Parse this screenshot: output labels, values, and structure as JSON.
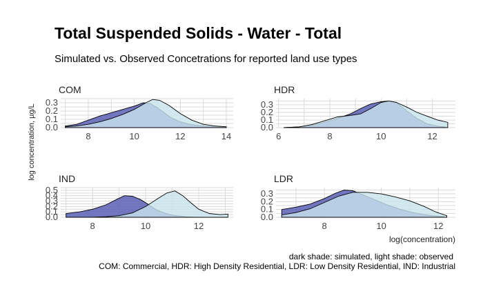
{
  "title": "Total Suspended Solids - Water - Total",
  "subtitle": "Simulated vs. Observed Concetrations for reported land use types",
  "ylabel": "log concentration, µg/L",
  "xlabel": "log(concentration)",
  "caption_line1": "dark shade: simulated, light shade: observed",
  "caption_line2": "COM: Commercial, HDR: High Density Residential, LDR: Low Density Residential, IND: Industrial",
  "colors": {
    "simulated": "#5b5fb5",
    "observed": "#c8e3ec",
    "grid": "#d9d9d9",
    "outline": "#000000"
  },
  "chart_data": [
    {
      "type": "area",
      "panel": "COM",
      "xlim": [
        6.8,
        14.3
      ],
      "ylim": [
        0,
        0.35
      ],
      "xticks": [
        8,
        10,
        12,
        14
      ],
      "yticks": [
        0.0,
        0.1,
        0.2,
        0.3
      ],
      "series": [
        {
          "name": "simulated",
          "x": [
            7.0,
            7.5,
            8.0,
            8.5,
            9.0,
            9.5,
            10.0,
            10.4,
            10.7,
            11.0,
            11.3,
            11.6,
            12.0,
            12.4,
            12.8,
            13.2,
            13.6,
            14.0
          ],
          "y": [
            0.02,
            0.04,
            0.09,
            0.14,
            0.18,
            0.22,
            0.26,
            0.3,
            0.29,
            0.24,
            0.18,
            0.12,
            0.07,
            0.04,
            0.025,
            0.015,
            0.01,
            0.01
          ]
        },
        {
          "name": "observed",
          "x": [
            7.0,
            7.5,
            8.0,
            8.5,
            9.0,
            9.5,
            10.0,
            10.5,
            10.8,
            11.1,
            11.5,
            12.0,
            12.5,
            13.0,
            13.5,
            14.0
          ],
          "y": [
            0.01,
            0.02,
            0.04,
            0.07,
            0.11,
            0.16,
            0.22,
            0.3,
            0.34,
            0.33,
            0.27,
            0.17,
            0.09,
            0.04,
            0.02,
            0.01
          ]
        }
      ]
    },
    {
      "type": "area",
      "panel": "HDR",
      "xlim": [
        5.9,
        12.9
      ],
      "ylim": [
        0,
        0.38
      ],
      "xticks": [
        6,
        8,
        10,
        12
      ],
      "yticks": [
        0.0,
        0.1,
        0.2,
        0.3
      ],
      "series": [
        {
          "name": "simulated",
          "x": [
            6.2,
            6.8,
            7.3,
            7.8,
            8.3,
            8.8,
            9.2,
            9.6,
            10.0,
            10.3,
            10.6,
            11.0,
            11.4,
            11.8,
            12.2,
            12.5
          ],
          "y": [
            0.0,
            0.01,
            0.03,
            0.07,
            0.12,
            0.18,
            0.25,
            0.31,
            0.34,
            0.35,
            0.33,
            0.22,
            0.12,
            0.05,
            0.02,
            0.01
          ]
        },
        {
          "name": "observed",
          "x": [
            6.2,
            6.8,
            7.3,
            7.8,
            8.3,
            8.8,
            9.2,
            9.6,
            10.0,
            10.3,
            10.6,
            11.0,
            11.4,
            11.8,
            12.2,
            12.6
          ],
          "y": [
            0.0,
            0.01,
            0.04,
            0.09,
            0.14,
            0.16,
            0.18,
            0.25,
            0.33,
            0.35,
            0.33,
            0.27,
            0.2,
            0.15,
            0.1,
            0.07
          ]
        }
      ]
    },
    {
      "type": "area",
      "panel": "IND",
      "xlim": [
        6.8,
        13.3
      ],
      "ylim": [
        0,
        0.55
      ],
      "xticks": [
        8,
        10,
        12
      ],
      "yticks": [
        0.0,
        0.1,
        0.2,
        0.3,
        0.4,
        0.5
      ],
      "series": [
        {
          "name": "simulated",
          "x": [
            7.0,
            7.5,
            8.0,
            8.5,
            8.9,
            9.2,
            9.5,
            9.8,
            10.1,
            10.4,
            10.7,
            11.0,
            11.5,
            12.0,
            12.5,
            13.0
          ],
          "y": [
            0.07,
            0.1,
            0.15,
            0.23,
            0.33,
            0.4,
            0.39,
            0.33,
            0.24,
            0.14,
            0.08,
            0.04,
            0.01,
            0.0,
            0.0,
            0.0
          ]
        },
        {
          "name": "observed",
          "x": [
            7.0,
            7.5,
            8.0,
            8.5,
            9.0,
            9.5,
            10.0,
            10.5,
            10.8,
            11.1,
            11.4,
            11.7,
            12.0,
            12.4,
            12.8,
            13.1
          ],
          "y": [
            0.0,
            0.0,
            0.0,
            0.01,
            0.03,
            0.08,
            0.2,
            0.36,
            0.45,
            0.49,
            0.4,
            0.27,
            0.15,
            0.07,
            0.05,
            0.06
          ]
        }
      ]
    },
    {
      "type": "area",
      "panel": "LDR",
      "xlim": [
        6.3,
        12.6
      ],
      "ylim": [
        0,
        0.38
      ],
      "xticks": [
        8,
        10,
        12
      ],
      "yticks": [
        0.0,
        0.1,
        0.2,
        0.3
      ],
      "series": [
        {
          "name": "simulated",
          "x": [
            6.5,
            7.0,
            7.5,
            8.0,
            8.4,
            8.7,
            9.0,
            9.4,
            9.8,
            10.2,
            10.6,
            11.0,
            11.4,
            11.8,
            12.2
          ],
          "y": [
            0.1,
            0.13,
            0.17,
            0.24,
            0.31,
            0.35,
            0.34,
            0.28,
            0.22,
            0.16,
            0.11,
            0.07,
            0.04,
            0.02,
            0.01
          ]
        },
        {
          "name": "observed",
          "x": [
            6.5,
            7.0,
            7.5,
            8.0,
            8.5,
            9.0,
            9.5,
            10.0,
            10.5,
            11.0,
            11.5,
            11.9,
            12.3
          ],
          "y": [
            0.03,
            0.06,
            0.11,
            0.19,
            0.27,
            0.32,
            0.32,
            0.3,
            0.26,
            0.21,
            0.14,
            0.07,
            0.02
          ]
        }
      ]
    }
  ]
}
